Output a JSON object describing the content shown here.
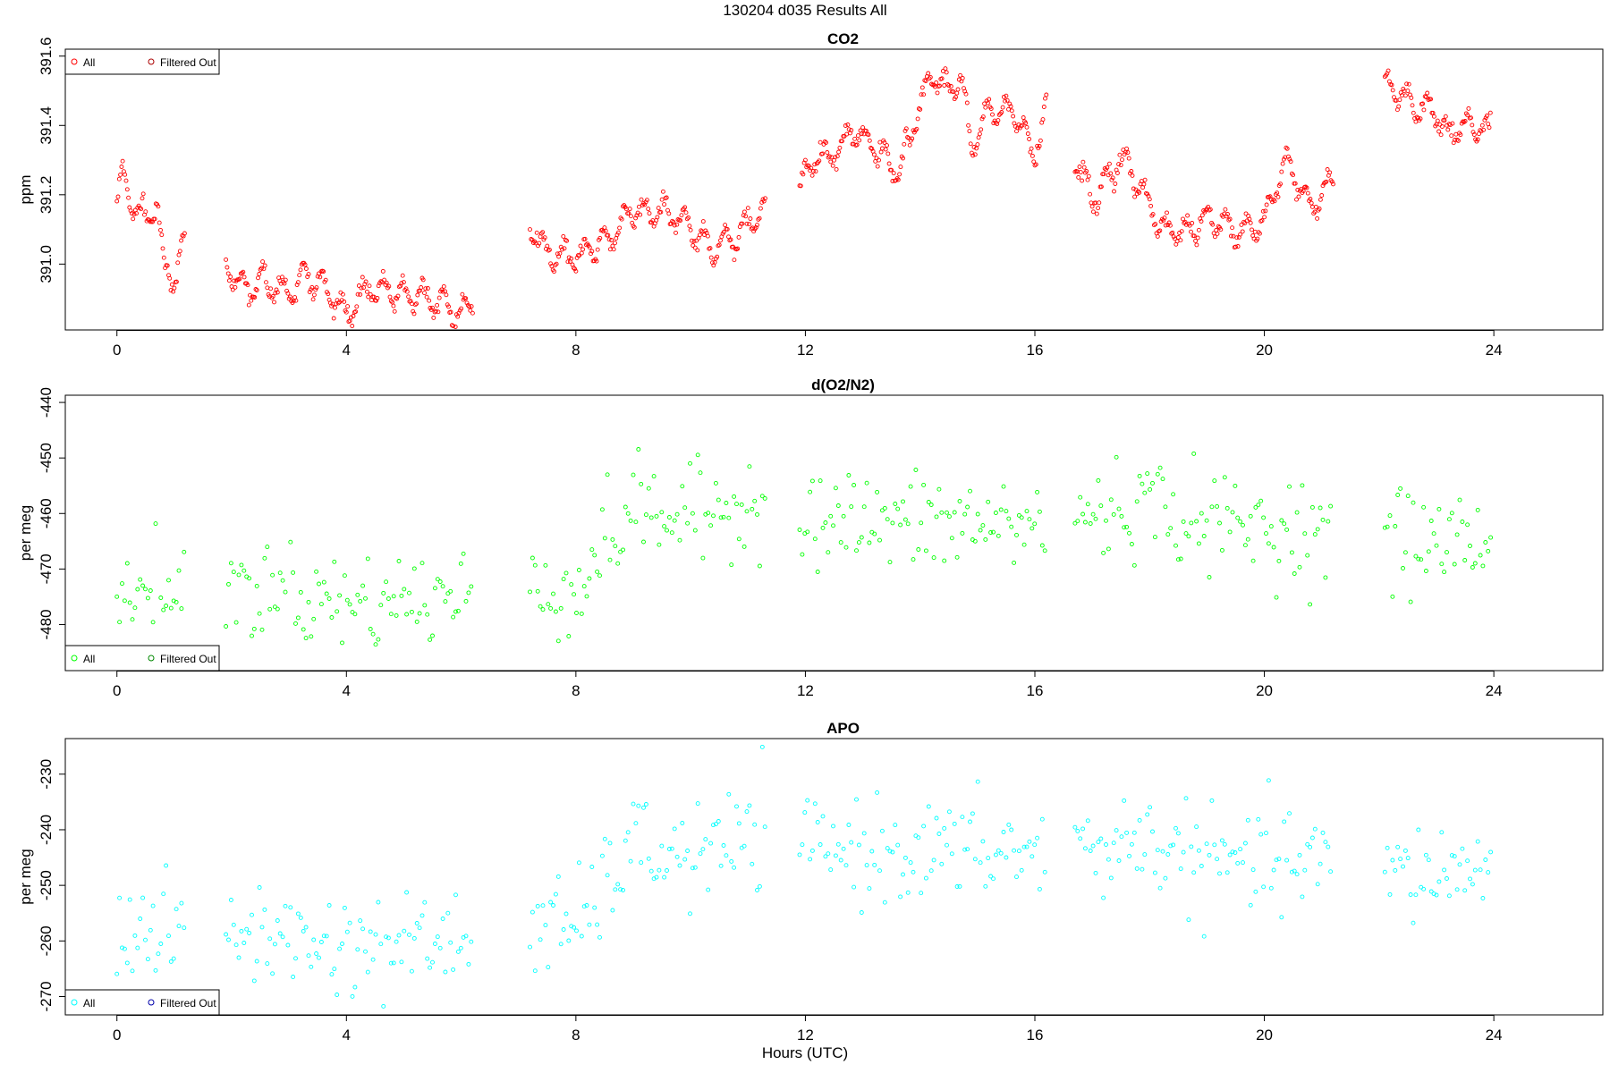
{
  "figure": {
    "title": "130204   d035   Results All",
    "xlabel": "Hours (UTC)"
  },
  "chart_data": [
    {
      "type": "scatter",
      "title": "CO2",
      "ylabel": "ppm",
      "xlim": [
        -0.9,
        25.9
      ],
      "ylim": [
        390.81,
        391.62
      ],
      "xticks": [
        0,
        4,
        8,
        12,
        16,
        20,
        24
      ],
      "yticks": [
        391.0,
        391.2,
        391.4,
        391.6
      ],
      "ytick_labels": [
        "391.0",
        "391.2",
        "391.4",
        "391.6"
      ],
      "legend": {
        "position": "top-left",
        "entries": [
          "All",
          "Filtered Out"
        ],
        "colors": [
          "#ff0000",
          "#aa0000"
        ]
      },
      "color": "#ff0000",
      "marker": "open-circle",
      "trend": [
        [
          0.0,
          391.18
        ],
        [
          0.1,
          391.25
        ],
        [
          0.3,
          391.16
        ],
        [
          0.5,
          391.13
        ],
        [
          0.7,
          391.18
        ],
        [
          0.8,
          391.01
        ],
        [
          1.0,
          390.96
        ],
        [
          1.1,
          391.03
        ],
        [
          1.3,
          391.11
        ],
        [
          1.8,
          391.02
        ],
        [
          2.2,
          390.93
        ],
        [
          2.6,
          390.95
        ],
        [
          3.0,
          390.91
        ],
        [
          3.3,
          390.97
        ],
        [
          3.6,
          390.94
        ],
        [
          4.0,
          390.86
        ],
        [
          4.4,
          390.93
        ],
        [
          5.0,
          390.91
        ],
        [
          5.6,
          390.89
        ],
        [
          6.0,
          390.85
        ],
        [
          6.2,
          390.9
        ],
        [
          7.2,
          391.11
        ],
        [
          7.6,
          391.02
        ],
        [
          8.2,
          391.04
        ],
        [
          8.6,
          391.08
        ],
        [
          9.0,
          391.15
        ],
        [
          9.6,
          391.15
        ],
        [
          10.0,
          391.11
        ],
        [
          10.4,
          391.03
        ],
        [
          10.8,
          391.08
        ],
        [
          11.3,
          391.16
        ],
        [
          11.9,
          391.22
        ],
        [
          12.2,
          391.31
        ],
        [
          12.6,
          391.32
        ],
        [
          12.8,
          391.38
        ],
        [
          13.2,
          391.34
        ],
        [
          13.6,
          391.26
        ],
        [
          13.9,
          391.4
        ],
        [
          14.2,
          391.55
        ],
        [
          14.5,
          391.5
        ],
        [
          14.7,
          391.55
        ],
        [
          14.9,
          391.33
        ],
        [
          15.2,
          391.44
        ],
        [
          15.6,
          391.45
        ],
        [
          16.0,
          391.32
        ],
        [
          16.2,
          391.45
        ],
        [
          16.7,
          391.31
        ],
        [
          17.0,
          391.18
        ],
        [
          17.5,
          391.31
        ],
        [
          17.8,
          391.23
        ],
        [
          18.2,
          391.11
        ],
        [
          18.6,
          391.09
        ],
        [
          19.0,
          391.13
        ],
        [
          19.6,
          391.1
        ],
        [
          20.0,
          391.12
        ],
        [
          20.2,
          391.22
        ],
        [
          20.4,
          391.3
        ],
        [
          20.8,
          391.16
        ],
        [
          21.2,
          391.25
        ],
        [
          22.1,
          391.52
        ],
        [
          22.6,
          391.46
        ],
        [
          23.0,
          391.44
        ],
        [
          23.2,
          391.38
        ],
        [
          23.5,
          391.4
        ],
        [
          23.9,
          391.39
        ]
      ],
      "segments": [
        [
          0.0,
          1.2
        ],
        [
          1.9,
          6.2
        ],
        [
          7.2,
          11.3
        ],
        [
          11.9,
          16.2
        ],
        [
          16.7,
          21.2
        ],
        [
          22.1,
          23.95
        ]
      ],
      "wiggle": 0.035,
      "noise": 0.012,
      "spacing": 0.02
    },
    {
      "type": "scatter",
      "title": "d(O2/N2)",
      "ylabel": "per meg",
      "xlim": [
        -0.9,
        25.9
      ],
      "ylim": [
        -488.3,
        -438.7
      ],
      "xticks": [
        0,
        4,
        8,
        12,
        16,
        20,
        24
      ],
      "yticks": [
        -440,
        -450,
        -460,
        -470,
        -480
      ],
      "ytick_labels": [
        "-440",
        "-450",
        "-460",
        "-470",
        "-480"
      ],
      "legend": {
        "position": "bottom-left",
        "entries": [
          "All",
          "Filtered Out"
        ],
        "colors": [
          "#00ff00",
          "#008800"
        ]
      },
      "color": "#00ff00",
      "marker": "open-circle",
      "trend": [
        [
          0.0,
          -474
        ],
        [
          1.2,
          -475
        ],
        [
          1.9,
          -473
        ],
        [
          4.0,
          -476
        ],
        [
          6.2,
          -475
        ],
        [
          7.2,
          -472
        ],
        [
          8.0,
          -474
        ],
        [
          8.5,
          -466
        ],
        [
          9.0,
          -459
        ],
        [
          10.0,
          -461
        ],
        [
          11.3,
          -457
        ],
        [
          11.9,
          -461
        ],
        [
          14.0,
          -462
        ],
        [
          16.2,
          -462
        ],
        [
          16.7,
          -461
        ],
        [
          18.0,
          -458
        ],
        [
          19.0,
          -462
        ],
        [
          21.2,
          -463
        ],
        [
          22.1,
          -465
        ],
        [
          23.95,
          -465
        ]
      ],
      "segments": [
        [
          0.0,
          1.2
        ],
        [
          1.9,
          6.2
        ],
        [
          7.2,
          11.3
        ],
        [
          11.9,
          16.2
        ],
        [
          16.7,
          21.2
        ],
        [
          22.1,
          23.95
        ]
      ],
      "wiggle": 0,
      "noise": 4.5,
      "spacing": 0.045
    },
    {
      "type": "scatter",
      "title": "APO",
      "ylabel": "per meg",
      "xlim": [
        -0.9,
        25.9
      ],
      "ylim": [
        -273.3,
        -223.6
      ],
      "xticks": [
        0,
        4,
        8,
        12,
        16,
        20,
        24
      ],
      "yticks": [
        -230,
        -240,
        -250,
        -260,
        -270
      ],
      "ytick_labels": [
        "-230",
        "-240",
        "-250",
        "-260",
        "-270"
      ],
      "legend": {
        "position": "bottom-left",
        "entries": [
          "All",
          "Filtered Out"
        ],
        "colors": [
          "#00ffff",
          "#0000aa"
        ]
      },
      "color": "#00ffff",
      "marker": "open-circle",
      "trend": [
        [
          0.0,
          -258
        ],
        [
          1.2,
          -259
        ],
        [
          1.9,
          -258
        ],
        [
          4.0,
          -261
        ],
        [
          6.2,
          -260
        ],
        [
          7.2,
          -257
        ],
        [
          8.0,
          -258
        ],
        [
          8.5,
          -250
        ],
        [
          9.0,
          -243
        ],
        [
          10.0,
          -245
        ],
        [
          11.3,
          -241
        ],
        [
          11.9,
          -243
        ],
        [
          14.0,
          -244
        ],
        [
          16.2,
          -244
        ],
        [
          16.7,
          -244
        ],
        [
          18.0,
          -242
        ],
        [
          19.0,
          -246
        ],
        [
          21.2,
          -246
        ],
        [
          22.1,
          -248
        ],
        [
          23.95,
          -247
        ]
      ],
      "segments": [
        [
          0.0,
          1.2
        ],
        [
          1.9,
          6.2
        ],
        [
          7.2,
          11.3
        ],
        [
          11.9,
          16.2
        ],
        [
          16.7,
          21.2
        ],
        [
          22.1,
          23.95
        ]
      ],
      "wiggle": 0,
      "noise": 4.5,
      "spacing": 0.045
    }
  ]
}
